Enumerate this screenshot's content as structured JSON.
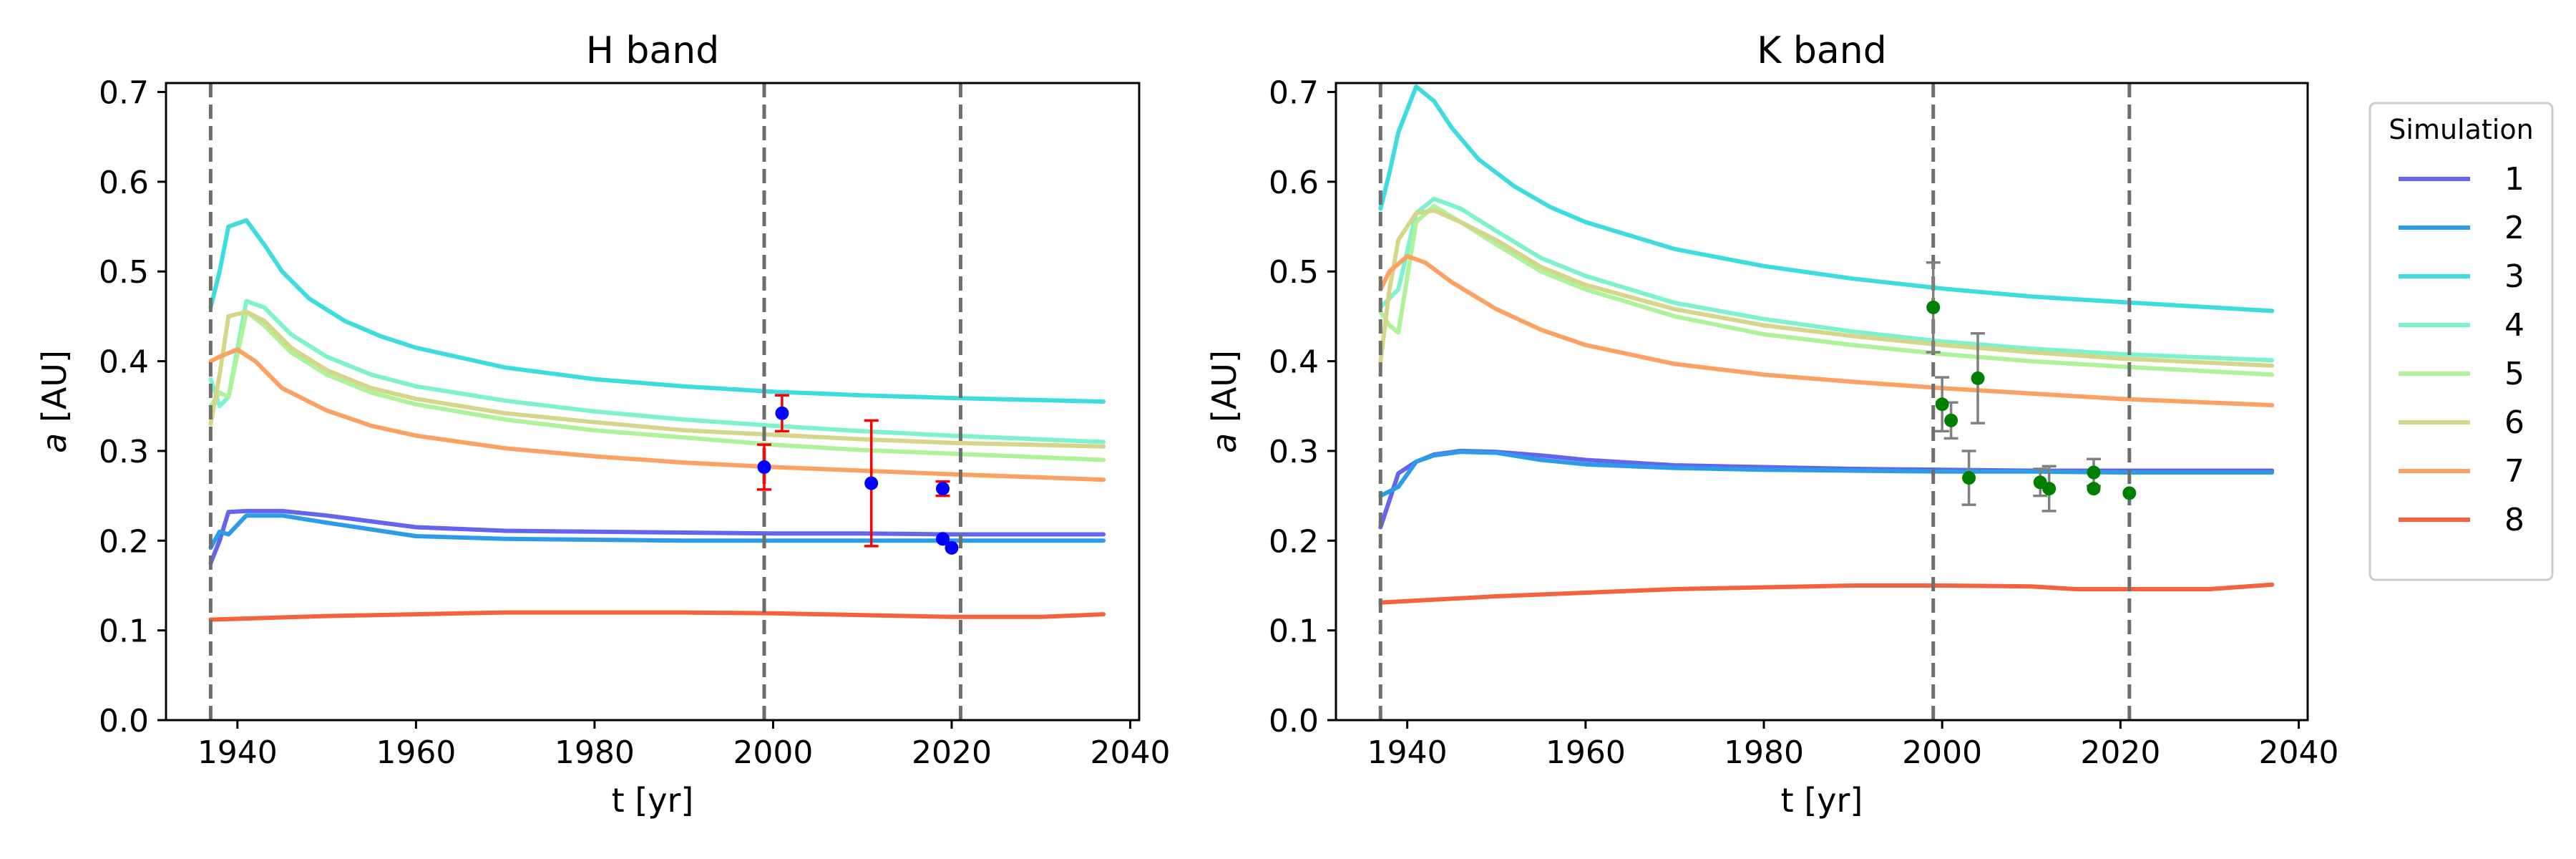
{
  "chart_data": [
    {
      "type": "line",
      "title": "H band",
      "xlabel": "t [yr]",
      "ylabel_italic": "a",
      "ylabel_unit": " [AU]",
      "xlim": [
        1932,
        2041
      ],
      "ylim": [
        0.0,
        0.71
      ],
      "xticks": [
        1940,
        1960,
        1980,
        2000,
        2020,
        2040
      ],
      "yticks": [
        0.0,
        0.1,
        0.2,
        0.3,
        0.4,
        0.5,
        0.6,
        0.7
      ],
      "vlines": [
        1937,
        1999,
        2021
      ],
      "series": [
        {
          "name": "1",
          "color": "#6464ec",
          "x": [
            1937,
            1938,
            1939,
            1941,
            1945,
            1950,
            1960,
            1970,
            1980,
            1990,
            2000,
            2010,
            2020,
            2037
          ],
          "y": [
            0.175,
            0.2,
            0.232,
            0.233,
            0.233,
            0.228,
            0.215,
            0.211,
            0.21,
            0.209,
            0.208,
            0.208,
            0.207,
            0.207
          ]
        },
        {
          "name": "2",
          "color": "#2c9ce8",
          "x": [
            1937,
            1938,
            1939,
            1941,
            1945,
            1950,
            1960,
            1970,
            1980,
            1990,
            2000,
            2010,
            2020,
            2037
          ],
          "y": [
            0.192,
            0.21,
            0.207,
            0.228,
            0.228,
            0.22,
            0.205,
            0.202,
            0.201,
            0.2,
            0.2,
            0.2,
            0.2,
            0.2
          ]
        },
        {
          "name": "3",
          "color": "#3edcdc",
          "x": [
            1937,
            1938,
            1939,
            1941,
            1943,
            1945,
            1948,
            1952,
            1956,
            1960,
            1970,
            1980,
            1990,
            2000,
            2010,
            2020,
            2037
          ],
          "y": [
            0.46,
            0.5,
            0.55,
            0.557,
            0.53,
            0.5,
            0.47,
            0.445,
            0.428,
            0.415,
            0.393,
            0.38,
            0.372,
            0.366,
            0.362,
            0.359,
            0.355
          ]
        },
        {
          "name": "4",
          "color": "#7ef2cc",
          "x": [
            1937,
            1938,
            1939,
            1941,
            1943,
            1946,
            1950,
            1955,
            1960,
            1970,
            1980,
            1990,
            2000,
            2010,
            2020,
            2037
          ],
          "y": [
            0.38,
            0.35,
            0.36,
            0.467,
            0.46,
            0.43,
            0.405,
            0.385,
            0.372,
            0.356,
            0.344,
            0.335,
            0.328,
            0.322,
            0.317,
            0.31
          ]
        },
        {
          "name": "5",
          "color": "#aef29a",
          "x": [
            1937,
            1938,
            1939,
            1941,
            1943,
            1946,
            1950,
            1955,
            1960,
            1970,
            1980,
            1990,
            2000,
            2010,
            2020,
            2037
          ],
          "y": [
            0.35,
            0.365,
            0.36,
            0.455,
            0.44,
            0.41,
            0.385,
            0.365,
            0.352,
            0.335,
            0.323,
            0.315,
            0.307,
            0.301,
            0.297,
            0.29
          ]
        },
        {
          "name": "6",
          "color": "#d4d68a",
          "x": [
            1937,
            1938,
            1939,
            1941,
            1943,
            1946,
            1950,
            1955,
            1960,
            1970,
            1980,
            1990,
            2000,
            2010,
            2020,
            2037
          ],
          "y": [
            0.33,
            0.385,
            0.45,
            0.455,
            0.445,
            0.415,
            0.39,
            0.37,
            0.358,
            0.342,
            0.332,
            0.323,
            0.318,
            0.313,
            0.309,
            0.305
          ]
        },
        {
          "name": "7",
          "color": "#fba262",
          "x": [
            1937,
            1938,
            1940,
            1942,
            1945,
            1950,
            1955,
            1960,
            1970,
            1980,
            1990,
            2000,
            2010,
            2020,
            2037
          ],
          "y": [
            0.4,
            0.405,
            0.413,
            0.4,
            0.37,
            0.345,
            0.328,
            0.317,
            0.303,
            0.294,
            0.287,
            0.282,
            0.278,
            0.274,
            0.268
          ]
        },
        {
          "name": "8",
          "color": "#f4623e",
          "x": [
            1937,
            1950,
            1960,
            1970,
            1980,
            1990,
            2000,
            2010,
            2020,
            2030,
            2037
          ],
          "y": [
            0.112,
            0.116,
            0.118,
            0.12,
            0.12,
            0.12,
            0.119,
            0.117,
            0.115,
            0.115,
            0.118
          ]
        }
      ],
      "observations": {
        "color": "#0000ff",
        "errcolor": "#ff0000",
        "points": [
          {
            "x": 1999,
            "y": 0.282,
            "err": 0.025
          },
          {
            "x": 2001,
            "y": 0.342,
            "err": 0.02
          },
          {
            "x": 2011,
            "y": 0.264,
            "err": 0.07
          },
          {
            "x": 2019,
            "y": 0.258,
            "err": 0.008
          },
          {
            "x": 2019,
            "y": 0.202,
            "err": null
          },
          {
            "x": 2020,
            "y": 0.192,
            "err": null
          }
        ]
      }
    },
    {
      "type": "line",
      "title": "K band",
      "xlabel": "t [yr]",
      "ylabel_italic": "a",
      "ylabel_unit": " [AU]",
      "xlim": [
        1932,
        2041
      ],
      "ylim": [
        0.0,
        0.71
      ],
      "xticks": [
        1940,
        1960,
        1980,
        2000,
        2020,
        2040
      ],
      "yticks": [
        0.0,
        0.1,
        0.2,
        0.3,
        0.4,
        0.5,
        0.6,
        0.7
      ],
      "vlines": [
        1937,
        1999,
        2021
      ],
      "series": [
        {
          "name": "1",
          "color": "#6464ec",
          "x": [
            1937,
            1938,
            1939,
            1941,
            1943,
            1946,
            1950,
            1955,
            1960,
            1970,
            1980,
            1990,
            2000,
            2010,
            2020,
            2037
          ],
          "y": [
            0.215,
            0.245,
            0.275,
            0.288,
            0.296,
            0.3,
            0.299,
            0.295,
            0.29,
            0.284,
            0.282,
            0.28,
            0.279,
            0.278,
            0.278,
            0.278
          ]
        },
        {
          "name": "2",
          "color": "#2c9ce8",
          "x": [
            1937,
            1938,
            1939,
            1941,
            1943,
            1946,
            1950,
            1955,
            1960,
            1970,
            1980,
            1990,
            2000,
            2010,
            2020,
            2037
          ],
          "y": [
            0.25,
            0.255,
            0.26,
            0.288,
            0.295,
            0.299,
            0.298,
            0.29,
            0.285,
            0.281,
            0.279,
            0.278,
            0.277,
            0.277,
            0.276,
            0.276
          ]
        },
        {
          "name": "3",
          "color": "#3edcdc",
          "x": [
            1937,
            1938,
            1939,
            1941,
            1943,
            1945,
            1948,
            1952,
            1956,
            1960,
            1970,
            1980,
            1990,
            2000,
            2010,
            2020,
            2037
          ],
          "y": [
            0.57,
            0.61,
            0.655,
            0.706,
            0.69,
            0.66,
            0.625,
            0.595,
            0.572,
            0.555,
            0.525,
            0.506,
            0.492,
            0.481,
            0.472,
            0.466,
            0.456
          ]
        },
        {
          "name": "4",
          "color": "#7ef2cc",
          "x": [
            1937,
            1938,
            1939,
            1941,
            1943,
            1946,
            1950,
            1955,
            1960,
            1970,
            1980,
            1990,
            2000,
            2010,
            2020,
            2037
          ],
          "y": [
            0.46,
            0.47,
            0.48,
            0.565,
            0.581,
            0.57,
            0.545,
            0.515,
            0.495,
            0.465,
            0.447,
            0.433,
            0.422,
            0.414,
            0.408,
            0.401
          ]
        },
        {
          "name": "5",
          "color": "#aef29a",
          "x": [
            1937,
            1938,
            1939,
            1941,
            1943,
            1946,
            1950,
            1955,
            1960,
            1970,
            1980,
            1990,
            2000,
            2010,
            2020,
            2037
          ],
          "y": [
            0.455,
            0.44,
            0.432,
            0.555,
            0.573,
            0.555,
            0.53,
            0.5,
            0.48,
            0.45,
            0.43,
            0.418,
            0.408,
            0.4,
            0.394,
            0.385
          ]
        },
        {
          "name": "6",
          "color": "#d4d68a",
          "x": [
            1937,
            1938,
            1939,
            1941,
            1943,
            1946,
            1950,
            1955,
            1960,
            1970,
            1980,
            1990,
            2000,
            2010,
            2020,
            2037
          ],
          "y": [
            0.4,
            0.48,
            0.535,
            0.565,
            0.568,
            0.555,
            0.535,
            0.505,
            0.485,
            0.458,
            0.44,
            0.428,
            0.418,
            0.41,
            0.403,
            0.395
          ]
        },
        {
          "name": "7",
          "color": "#fba262",
          "x": [
            1937,
            1938,
            1940,
            1942,
            1945,
            1950,
            1955,
            1960,
            1970,
            1980,
            1990,
            2000,
            2010,
            2020,
            2037
          ],
          "y": [
            0.48,
            0.5,
            0.517,
            0.51,
            0.488,
            0.458,
            0.435,
            0.418,
            0.397,
            0.385,
            0.377,
            0.37,
            0.364,
            0.358,
            0.351
          ]
        },
        {
          "name": "8",
          "color": "#f4623e",
          "x": [
            1937,
            1950,
            1960,
            1970,
            1980,
            1990,
            2000,
            2010,
            2015,
            2020,
            2030,
            2037
          ],
          "y": [
            0.131,
            0.138,
            0.142,
            0.146,
            0.148,
            0.15,
            0.15,
            0.149,
            0.146,
            0.146,
            0.146,
            0.151
          ]
        }
      ],
      "observations": {
        "color": "#007f00",
        "errcolor": "#808080",
        "points": [
          {
            "x": 1999,
            "y": 0.46,
            "err": 0.05
          },
          {
            "x": 2000,
            "y": 0.352,
            "err": 0.03
          },
          {
            "x": 2001,
            "y": 0.334,
            "err": 0.02
          },
          {
            "x": 2003,
            "y": 0.27,
            "err": 0.03
          },
          {
            "x": 2004,
            "y": 0.381,
            "err": 0.05
          },
          {
            "x": 2011,
            "y": 0.265,
            "err": 0.015
          },
          {
            "x": 2012,
            "y": 0.258,
            "err": 0.025
          },
          {
            "x": 2017,
            "y": 0.276,
            "err": 0.015
          },
          {
            "x": 2017,
            "y": 0.258,
            "err": null
          },
          {
            "x": 2021,
            "y": 0.253,
            "err": null
          }
        ]
      }
    }
  ],
  "legend": {
    "title": "Simulation",
    "placement": "right"
  }
}
